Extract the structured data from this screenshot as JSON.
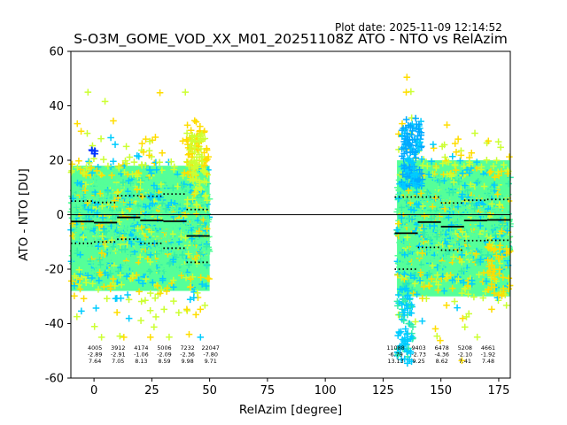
{
  "plot_date": "Plot date: 2025-11-09 12:14:52",
  "title": "S-O3M_GOME_VOD_XX_M01_20251108Z ATO - NTO vs RelAzim",
  "chart_data": {
    "type": "scatter",
    "title": "S-O3M_GOME_VOD_XX_M01_20251108Z ATO - NTO vs RelAzim",
    "xlabel": "RelAzim [degree]",
    "ylabel": "ATO - NTO [DU]",
    "xlim": [
      -10,
      180
    ],
    "ylim": [
      -60,
      60
    ],
    "xticks": [
      0,
      25,
      50,
      75,
      100,
      125,
      150,
      175
    ],
    "yticks": [
      -60,
      -40,
      -20,
      0,
      20,
      40,
      60
    ],
    "grid": false,
    "zero_line": 0,
    "clusters": [
      {
        "x_range": [
          -10,
          50
        ],
        "y_core": [
          -28,
          18
        ],
        "y_ext": [
          -45,
          45
        ]
      },
      {
        "x_range": [
          131,
          180
        ],
        "y_core": [
          -30,
          20
        ],
        "y_ext": [
          -60,
          51
        ]
      }
    ],
    "marker_colors": [
      "#55ff99",
      "#33eeaa",
      "#00ccff",
      "#00aaff",
      "#ccff33",
      "#ffdd00",
      "#0033ff",
      "#000080"
    ],
    "bins": [
      {
        "x_start": -10,
        "x_end": 0,
        "mean": -2.5,
        "p_hi": 5.0,
        "p_lo": -10.5
      },
      {
        "x_start": 0,
        "x_end": 10,
        "mean": -2.9,
        "p_hi": 4.5,
        "p_lo": -10.0
      },
      {
        "x_start": 10,
        "x_end": 20,
        "mean": -1.0,
        "p_hi": 7.0,
        "p_lo": -9.0
      },
      {
        "x_start": 20,
        "x_end": 30,
        "mean": -2.1,
        "p_hi": 6.8,
        "p_lo": -10.5
      },
      {
        "x_start": 30,
        "x_end": 40,
        "mean": -2.4,
        "p_hi": 7.6,
        "p_lo": -12.3
      },
      {
        "x_start": 40,
        "x_end": 50,
        "mean": -7.8,
        "p_hi": 1.9,
        "p_lo": -17.5
      },
      {
        "x_start": 130,
        "x_end": 140,
        "mean": -6.8,
        "p_hi": 6.5,
        "p_lo": -20.0
      },
      {
        "x_start": 140,
        "x_end": 150,
        "mean": -2.7,
        "p_hi": 6.5,
        "p_lo": -12.0
      },
      {
        "x_start": 150,
        "x_end": 160,
        "mean": -4.4,
        "p_hi": 4.3,
        "p_lo": -13.0
      },
      {
        "x_start": 160,
        "x_end": 170,
        "mean": -2.1,
        "p_hi": 5.3,
        "p_lo": -9.5
      },
      {
        "x_start": 170,
        "x_end": 180,
        "mean": -1.9,
        "p_hi": 5.6,
        "p_lo": -9.4
      }
    ],
    "stats": [
      {
        "x": 5,
        "count": "4005",
        "mean": "-2.89",
        "std": "7.64"
      },
      {
        "x": 15,
        "count": "3912",
        "mean": "-2.91",
        "std": "7.05"
      },
      {
        "x": 25,
        "count": "4174",
        "mean": "-1.06",
        "std": "8.13"
      },
      {
        "x": 35,
        "count": "5006",
        "mean": "-2.09",
        "std": "8.59"
      },
      {
        "x": 45,
        "count": "7232",
        "mean": "-2.36",
        "std": "9.98"
      },
      {
        "x": 55,
        "count": "22047",
        "mean": "-7.80",
        "std": "9.71"
      },
      {
        "x": 135,
        "count": "11088",
        "mean": "-6.79",
        "std": "13.13"
      },
      {
        "x": 145,
        "count": "9403",
        "mean": "-2.73",
        "std": "9.25"
      },
      {
        "x": 155,
        "count": "6478",
        "mean": "-4.36",
        "std": "8.62"
      },
      {
        "x": 165,
        "count": "5208",
        "mean": "-2.10",
        "std": "7.41"
      },
      {
        "x": 175,
        "count": "4661",
        "mean": "-1.92",
        "std": "7.48"
      }
    ]
  }
}
